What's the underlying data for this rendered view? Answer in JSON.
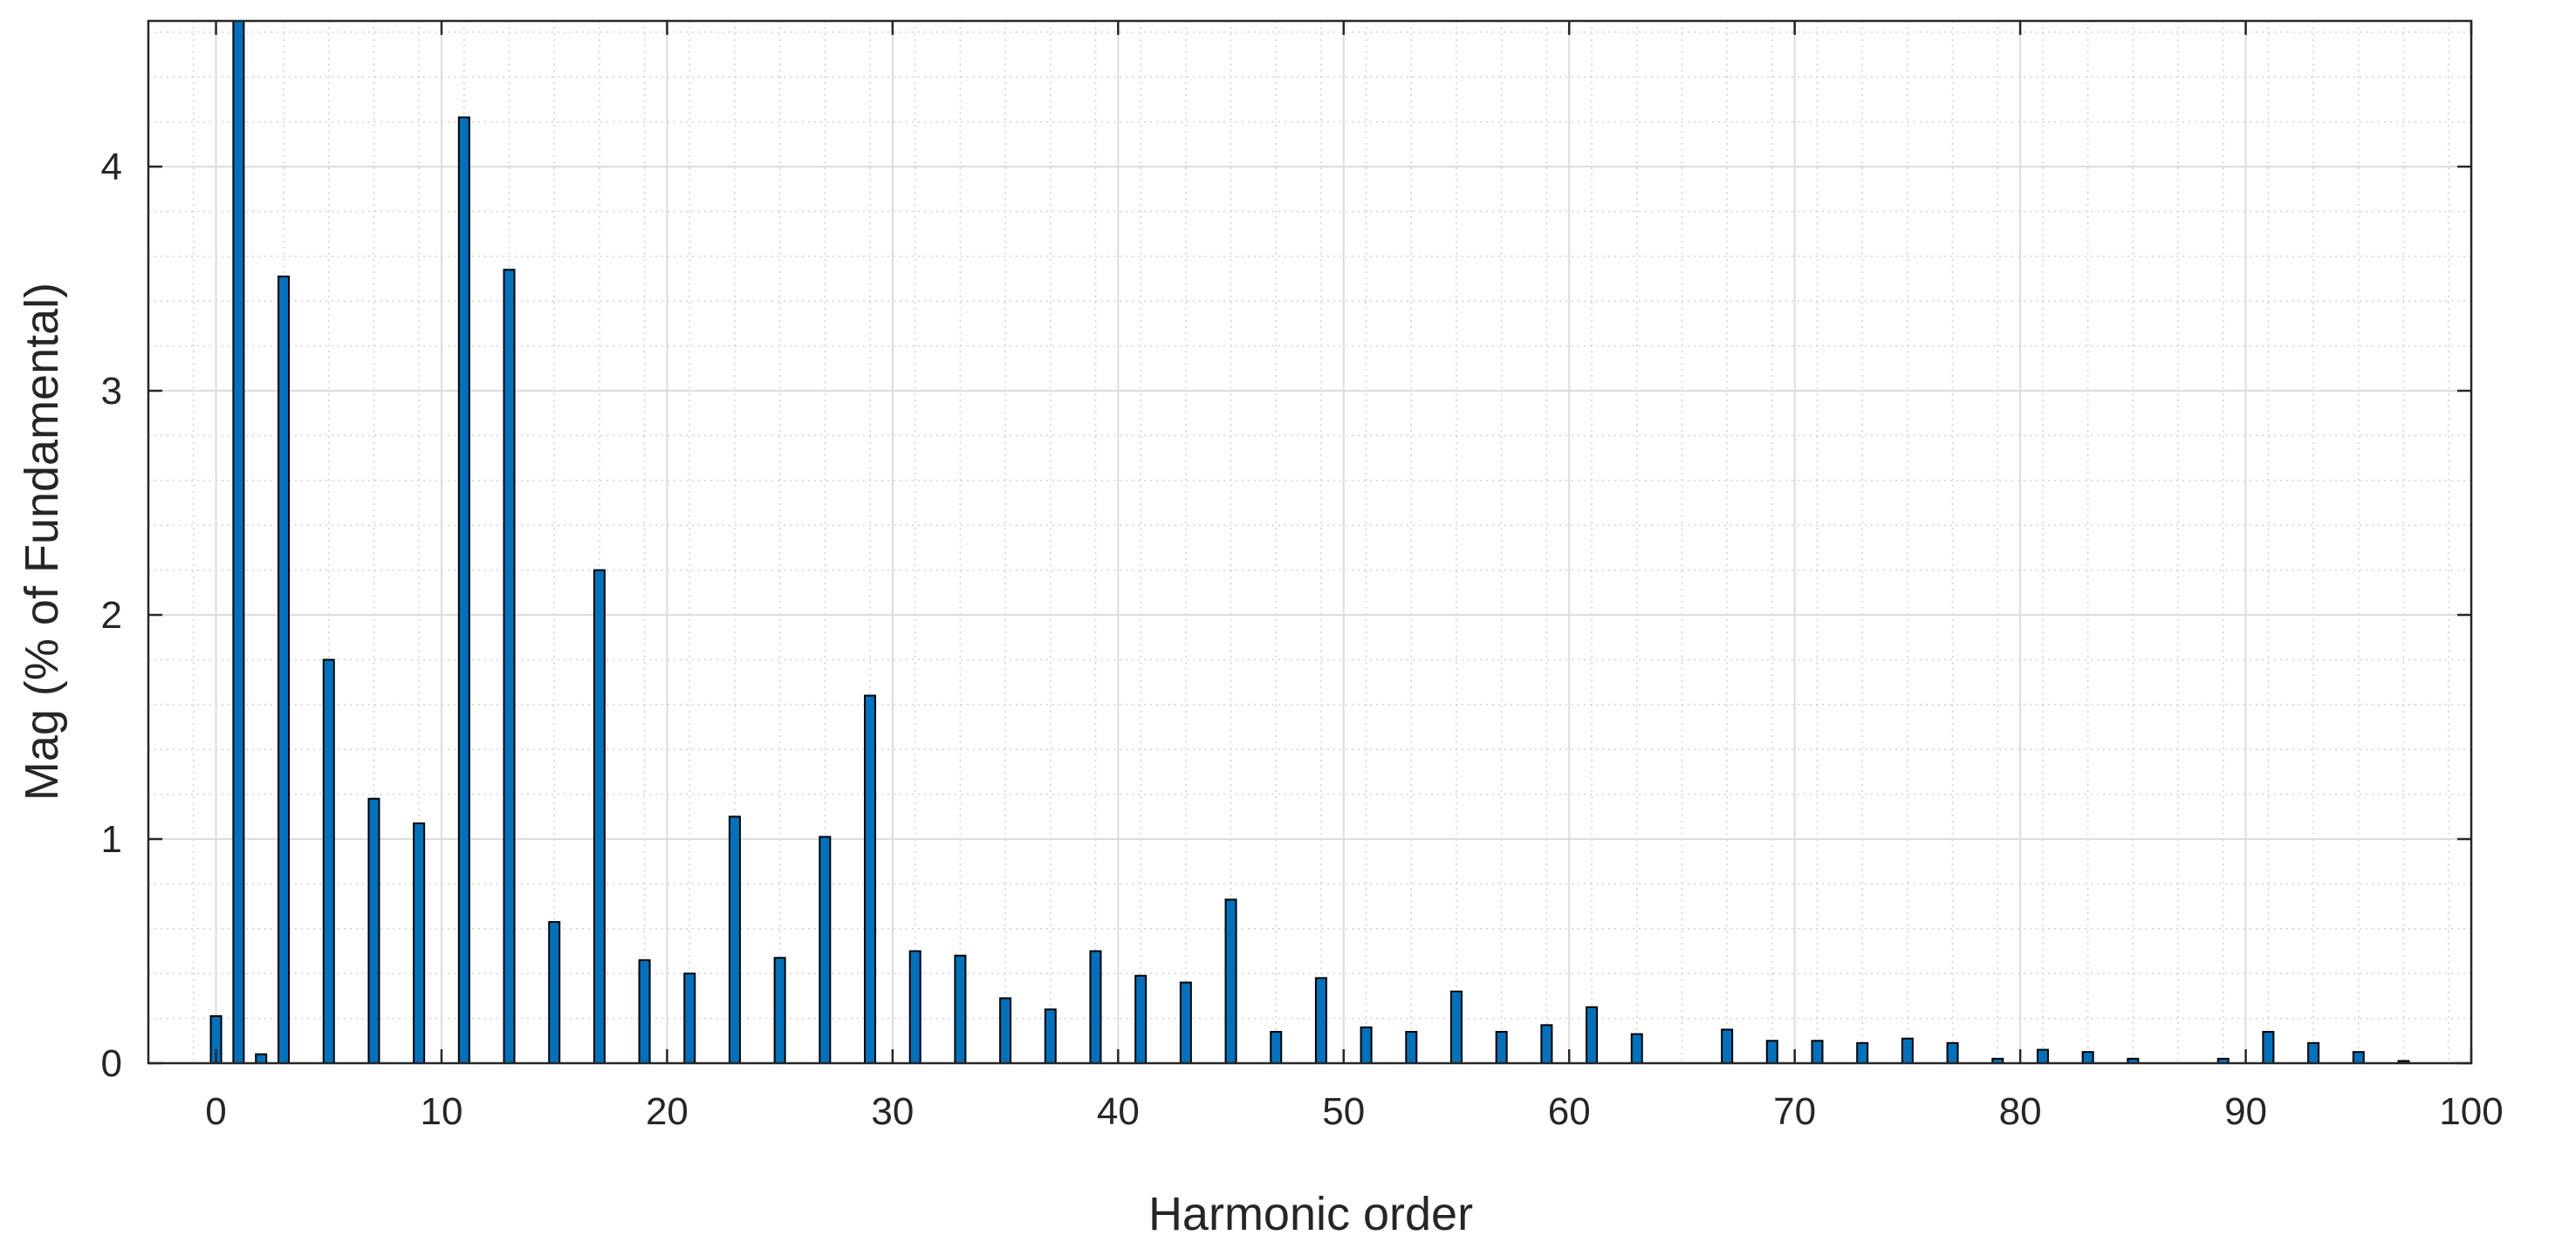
{
  "chart_data": {
    "type": "bar",
    "xlabel": "Harmonic order",
    "ylabel": "Mag (% of Fundamental)",
    "xlim": [
      -3,
      100
    ],
    "ylim": [
      0,
      4.65
    ],
    "xticks": [
      0,
      10,
      20,
      30,
      40,
      50,
      60,
      70,
      80,
      90,
      100
    ],
    "yticks": [
      0,
      1,
      2,
      3,
      4
    ],
    "grid": true,
    "minor_grid": true,
    "bar_color": "#0072BD",
    "bar_edge_color": "#000000",
    "x": [
      0,
      1,
      2,
      3,
      5,
      7,
      9,
      11,
      13,
      15,
      17,
      19,
      21,
      23,
      25,
      27,
      29,
      31,
      33,
      35,
      37,
      39,
      41,
      43,
      45,
      47,
      49,
      51,
      53,
      55,
      57,
      59,
      61,
      63,
      67,
      69,
      71,
      73,
      75,
      77,
      79,
      81,
      83,
      85,
      89,
      91,
      93,
      95,
      97
    ],
    "values": [
      0.21,
      4.65,
      0.04,
      3.51,
      1.8,
      1.18,
      1.07,
      4.22,
      3.54,
      0.63,
      2.2,
      0.46,
      0.4,
      1.1,
      0.47,
      1.01,
      1.64,
      0.5,
      0.48,
      0.29,
      0.24,
      0.5,
      0.39,
      0.36,
      0.73,
      0.14,
      0.38,
      0.16,
      0.14,
      0.32,
      0.14,
      0.17,
      0.25,
      0.13,
      0.15,
      0.1,
      0.1,
      0.09,
      0.11,
      0.09,
      0.02,
      0.06,
      0.05,
      0.02,
      0.02,
      0.14,
      0.09,
      0.05,
      0.01
    ]
  }
}
